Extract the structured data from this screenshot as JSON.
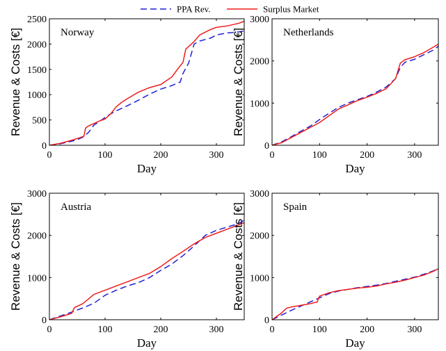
{
  "legend": {
    "position": "top-center",
    "entries": [
      {
        "label": "PPA Rev.",
        "color": "#1f1fd6",
        "dash": true
      },
      {
        "label": "Surplus Market",
        "color": "#ee1c1c",
        "dash": false
      }
    ]
  },
  "chart_data": [
    {
      "type": "line",
      "title": "Norway",
      "xlabel": "Day",
      "ylabel": "Revenue & Costs [€]",
      "xlim": [
        0,
        350
      ],
      "ylim": [
        0,
        2500
      ],
      "xticks": [
        0,
        100,
        200,
        300
      ],
      "yticks": [
        0,
        500,
        1000,
        1500,
        2000,
        2500
      ],
      "grid": false,
      "series": [
        {
          "name": "PPA Rev.",
          "color": "#1f1fd6",
          "dash": true,
          "x": [
            0,
            20,
            40,
            50,
            60,
            70,
            80,
            90,
            100,
            110,
            120,
            140,
            160,
            180,
            200,
            220,
            235,
            240,
            250,
            260,
            270,
            290,
            300,
            320,
            340,
            350
          ],
          "y": [
            0,
            30,
            80,
            110,
            160,
            250,
            400,
            470,
            550,
            620,
            680,
            780,
            890,
            1010,
            1110,
            1180,
            1250,
            1420,
            1620,
            2000,
            2060,
            2120,
            2180,
            2220,
            2240,
            2260
          ]
        },
        {
          "name": "Surplus Market",
          "color": "#ee1c1c",
          "dash": false,
          "x": [
            0,
            20,
            40,
            55,
            62,
            65,
            70,
            80,
            90,
            100,
            110,
            120,
            130,
            140,
            160,
            180,
            200,
            220,
            230,
            240,
            245,
            260,
            270,
            290,
            300,
            320,
            340,
            350
          ],
          "y": [
            0,
            40,
            100,
            150,
            180,
            340,
            380,
            430,
            480,
            520,
            620,
            760,
            850,
            920,
            1050,
            1140,
            1200,
            1350,
            1500,
            1640,
            1900,
            2050,
            2180,
            2290,
            2330,
            2360,
            2410,
            2450
          ]
        }
      ]
    },
    {
      "type": "line",
      "title": "Netherlands",
      "xlabel": "Day",
      "ylabel": "Revenue & Costs [€]",
      "xlim": [
        0,
        350
      ],
      "ylim": [
        0,
        3000
      ],
      "xticks": [
        0,
        100,
        200,
        300
      ],
      "yticks": [
        0,
        1000,
        2000,
        3000
      ],
      "grid": false,
      "series": [
        {
          "name": "PPA Rev.",
          "color": "#1f1fd6",
          "dash": true,
          "x": [
            0,
            20,
            40,
            60,
            80,
            100,
            120,
            140,
            160,
            180,
            200,
            220,
            240,
            260,
            270,
            280,
            300,
            320,
            340,
            350
          ],
          "y": [
            0,
            80,
            200,
            330,
            450,
            610,
            760,
            900,
            1000,
            1080,
            1160,
            1260,
            1380,
            1580,
            1850,
            1970,
            2040,
            2150,
            2260,
            2350
          ]
        },
        {
          "name": "Surplus Market",
          "color": "#ee1c1c",
          "dash": false,
          "x": [
            0,
            20,
            40,
            60,
            80,
            100,
            120,
            140,
            160,
            180,
            200,
            220,
            240,
            260,
            270,
            280,
            300,
            320,
            340,
            350
          ],
          "y": [
            0,
            60,
            180,
            300,
            420,
            540,
            700,
            860,
            960,
            1060,
            1140,
            1230,
            1340,
            1580,
            1950,
            2030,
            2100,
            2200,
            2330,
            2400
          ]
        }
      ]
    },
    {
      "type": "line",
      "title": "Austria",
      "xlabel": "Day",
      "ylabel": "Revenue & Costs [€]",
      "xlim": [
        0,
        350
      ],
      "ylim": [
        0,
        3000
      ],
      "xticks": [
        0,
        100,
        200,
        300
      ],
      "yticks": [
        0,
        1000,
        2000,
        3000
      ],
      "grid": false,
      "series": [
        {
          "name": "PPA Rev.",
          "color": "#1f1fd6",
          "dash": true,
          "x": [
            0,
            20,
            40,
            60,
            80,
            100,
            120,
            140,
            160,
            180,
            200,
            220,
            240,
            260,
            280,
            300,
            320,
            340,
            350
          ],
          "y": [
            0,
            90,
            180,
            280,
            390,
            580,
            700,
            800,
            880,
            1000,
            1170,
            1320,
            1520,
            1750,
            2000,
            2120,
            2200,
            2280,
            2360
          ]
        },
        {
          "name": "Surplus Market",
          "color": "#ee1c1c",
          "dash": false,
          "x": [
            0,
            20,
            40,
            45,
            60,
            80,
            100,
            120,
            140,
            160,
            180,
            200,
            220,
            240,
            260,
            280,
            300,
            320,
            340,
            350
          ],
          "y": [
            0,
            70,
            150,
            290,
            380,
            600,
            700,
            800,
            900,
            1000,
            1100,
            1260,
            1450,
            1620,
            1800,
            1950,
            2050,
            2150,
            2250,
            2300
          ]
        }
      ]
    },
    {
      "type": "line",
      "title": "Spain",
      "xlabel": "Day",
      "ylabel": "Revenue & Costs [€]",
      "xlim": [
        0,
        350
      ],
      "ylim": [
        0,
        3000
      ],
      "xticks": [
        0,
        100,
        200,
        300
      ],
      "yticks": [
        0,
        1000,
        2000,
        3000
      ],
      "grid": false,
      "series": [
        {
          "name": "PPA Rev.",
          "color": "#1f1fd6",
          "dash": true,
          "x": [
            0,
            20,
            40,
            60,
            80,
            100,
            120,
            140,
            160,
            180,
            200,
            220,
            240,
            260,
            280,
            300,
            320,
            340,
            350
          ],
          "y": [
            0,
            110,
            220,
            320,
            420,
            520,
            620,
            680,
            720,
            760,
            790,
            820,
            860,
            910,
            960,
            1010,
            1080,
            1160,
            1220
          ]
        },
        {
          "name": "Surplus Market",
          "color": "#ee1c1c",
          "dash": false,
          "x": [
            0,
            20,
            30,
            40,
            60,
            80,
            95,
            100,
            120,
            140,
            160,
            180,
            200,
            220,
            240,
            260,
            280,
            300,
            320,
            340,
            350
          ],
          "y": [
            0,
            160,
            270,
            300,
            340,
            380,
            420,
            560,
            640,
            690,
            720,
            750,
            770,
            800,
            850,
            890,
            940,
            1000,
            1060,
            1150,
            1210
          ]
        }
      ]
    }
  ]
}
